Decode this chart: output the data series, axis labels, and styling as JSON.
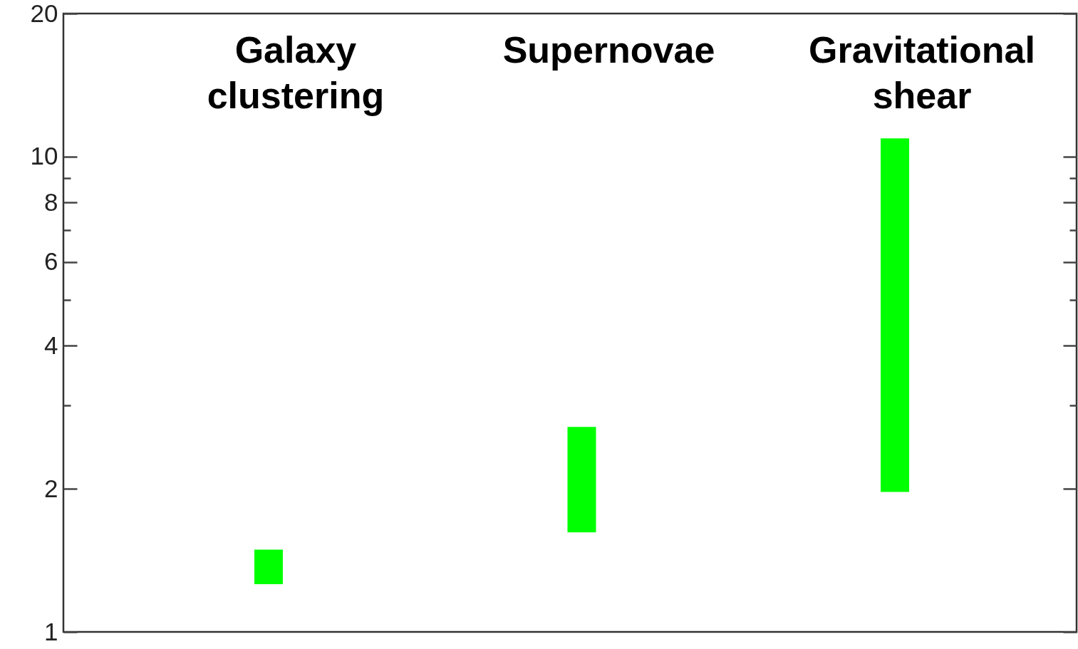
{
  "chart_data": {
    "type": "bar",
    "categories": [
      "Galaxy clustering",
      "Supernovae",
      "Gravitational shear"
    ],
    "base": [
      1.26,
      1.62,
      1.97
    ],
    "values": [
      0.23,
      1.08,
      8.95
    ],
    "color": "#00ff00",
    "log": true,
    "ylim": [
      1,
      20
    ],
    "yticks": [
      1,
      2,
      {
        "value": 3,
        "label": null
      },
      4,
      {
        "value": 5,
        "label": null
      },
      6,
      {
        "value": 7,
        "label": null
      },
      8,
      {
        "value": 9,
        "label": null
      },
      10,
      20
    ]
  }
}
